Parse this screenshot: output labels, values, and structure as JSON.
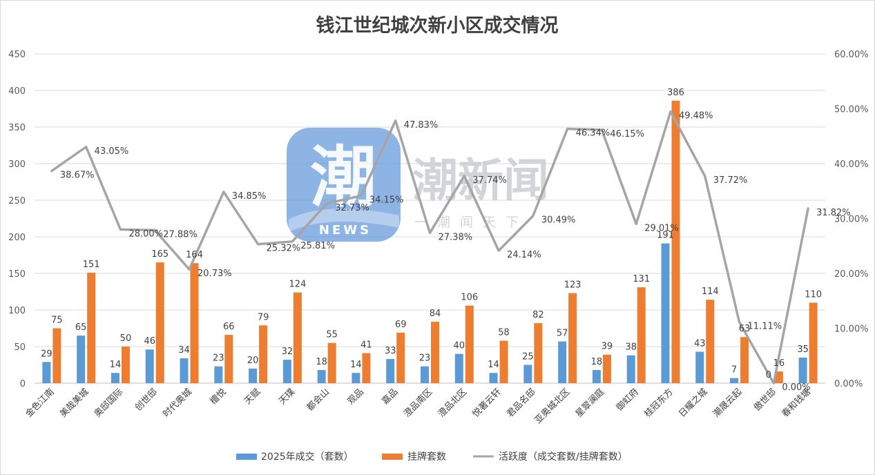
{
  "title": "钱江世纪城次新小区成交情况",
  "watermark": {
    "glyph": "潮",
    "news": "NEWS",
    "name": "潮新闻",
    "slogan": "一潮闻天下"
  },
  "colors": {
    "deals": "#5b9bd5",
    "listings": "#ed7d31",
    "activity": "#a5a5a5",
    "grid": "#d9d9d9",
    "logo": "#4f8ad8"
  },
  "chart_data": {
    "type": "bar",
    "title": "钱江世纪城次新小区成交情况",
    "categories": [
      "金色江南",
      "美哉美城",
      "奥邸国际",
      "创世邸",
      "时代奥城",
      "檀悦",
      "天赋",
      "天璞",
      "都会山",
      "观品",
      "嘉品",
      "澄品南区",
      "澄品北区",
      "悦著云轩",
      "君品名邸",
      "亚奥城北区",
      "星翠澜庭",
      "御虹府",
      "桂冠东方",
      "日耀之城",
      "潮晟云起",
      "傲世邸",
      "春和钱塘"
    ],
    "series": [
      {
        "name": "2025年成交（套数）",
        "type": "bar",
        "axis": "left",
        "values": [
          29,
          65,
          14,
          46,
          34,
          23,
          20,
          32,
          18,
          14,
          33,
          23,
          40,
          14,
          25,
          57,
          18,
          38,
          191,
          43,
          7,
          0,
          35
        ]
      },
      {
        "name": "挂牌套数",
        "type": "bar",
        "axis": "left",
        "values": [
          75,
          151,
          50,
          165,
          164,
          66,
          79,
          124,
          55,
          41,
          69,
          84,
          106,
          58,
          82,
          123,
          39,
          131,
          386,
          114,
          63,
          16,
          110
        ]
      },
      {
        "name": "活跃度（成交套数/挂牌套数）",
        "type": "line",
        "axis": "right",
        "values": [
          38.67,
          43.05,
          28.0,
          27.88,
          20.73,
          34.85,
          25.32,
          25.81,
          32.73,
          34.15,
          47.83,
          27.38,
          37.74,
          24.14,
          30.49,
          46.34,
          46.15,
          29.01,
          49.48,
          37.72,
          11.11,
          0.0,
          31.82
        ],
        "labels": [
          "38.67%",
          "43.05%",
          "28.00%",
          "27.88%",
          "20.73%",
          "34.85%",
          "25.32%",
          "25.81%",
          "32.73%",
          "34.15%",
          "47.83%",
          "27.38%",
          "37.74%",
          "24.14%",
          "30.49%",
          "46.34%",
          "46.15%",
          "29.01%",
          "49.48%",
          "37.72%",
          "11.11%",
          "0.00%",
          "31.82%"
        ]
      }
    ],
    "ylim": [
      0,
      450
    ],
    "yticks": [
      "0",
      "50",
      "100",
      "150",
      "200",
      "250",
      "300",
      "350",
      "400",
      "450"
    ],
    "y2lim": [
      0,
      60
    ],
    "y2ticks": [
      "0.00%",
      "10.00%",
      "20.00%",
      "30.00%",
      "40.00%",
      "50.00%",
      "60.00%"
    ],
    "grid": true,
    "legend": "bottom"
  }
}
